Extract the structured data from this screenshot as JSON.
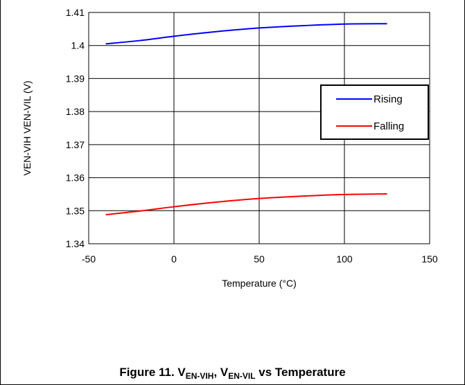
{
  "chart_data": {
    "type": "line",
    "xlabel": "Temperature (°C)",
    "ylabel": "VEN-VIH VEN-VIL (V)",
    "xlim": [
      -50,
      150
    ],
    "ylim": [
      1.34,
      1.41
    ],
    "x_ticks": [
      "-50",
      "0",
      "50",
      "100",
      "150"
    ],
    "y_ticks": [
      "1.34",
      "1.35",
      "1.36",
      "1.37",
      "1.38",
      "1.39",
      "1.4",
      "1.41"
    ],
    "grid": true,
    "legend_position": "right",
    "series": [
      {
        "name": "Rising",
        "color": "#0000ff",
        "x": [
          -40,
          -20,
          0,
          25,
          50,
          75,
          100,
          125
        ],
        "y": [
          1.4005,
          1.4015,
          1.4028,
          1.4042,
          1.4053,
          1.406,
          1.4065,
          1.4066
        ]
      },
      {
        "name": "Falling",
        "color": "#ff0000",
        "x": [
          -40,
          -20,
          0,
          25,
          50,
          75,
          100,
          125
        ],
        "y": [
          1.3488,
          1.3499,
          1.3512,
          1.3526,
          1.3537,
          1.3544,
          1.3549,
          1.3551
        ]
      }
    ]
  },
  "caption": {
    "prefix": "Figure 11. V",
    "sub1": "EN-VIH",
    "mid": ", V",
    "sub2": "EN-VIL",
    "suffix": " vs Temperature"
  }
}
